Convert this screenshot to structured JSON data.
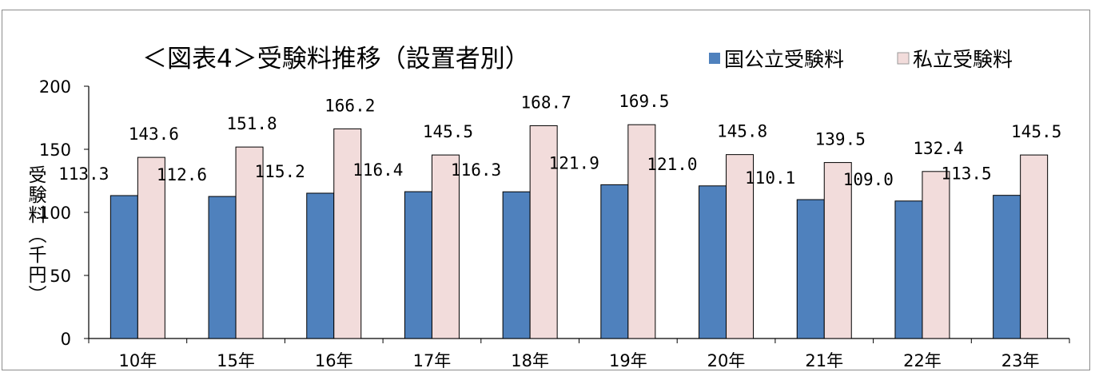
{
  "chart_data": {
    "type": "bar",
    "title": "＜図表4＞受験料推移（設置者別）",
    "ylabel": "受験料（千円）",
    "ylim": [
      0,
      200
    ],
    "yticks": [
      "0",
      "50",
      "100",
      "150",
      "200"
    ],
    "categories": [
      "10年",
      "15年",
      "16年",
      "17年",
      "18年",
      "19年",
      "20年",
      "21年",
      "22年",
      "23年"
    ],
    "series": [
      {
        "name": "国公立受験料",
        "color": "#4f81bd",
        "values": [
          113.3,
          112.6,
          115.2,
          116.4,
          116.3,
          121.9,
          121.0,
          110.1,
          109.0,
          113.5
        ],
        "labels": [
          "113.3",
          "112.6",
          "115.2",
          "116.4",
          "116.3",
          "121.9",
          "121.0",
          "110.1",
          "109.0",
          "113.5"
        ]
      },
      {
        "name": "私立受験料",
        "color": "#f2dcdb",
        "values": [
          143.6,
          151.8,
          166.2,
          145.5,
          168.7,
          169.5,
          145.8,
          139.5,
          132.4,
          145.5
        ],
        "labels": [
          "143.6",
          "151.8",
          "166.2",
          "145.5",
          "168.7",
          "169.5",
          "145.8",
          "139.5",
          "132.4",
          "145.5"
        ]
      }
    ],
    "legend": "top-right",
    "grid": false
  }
}
